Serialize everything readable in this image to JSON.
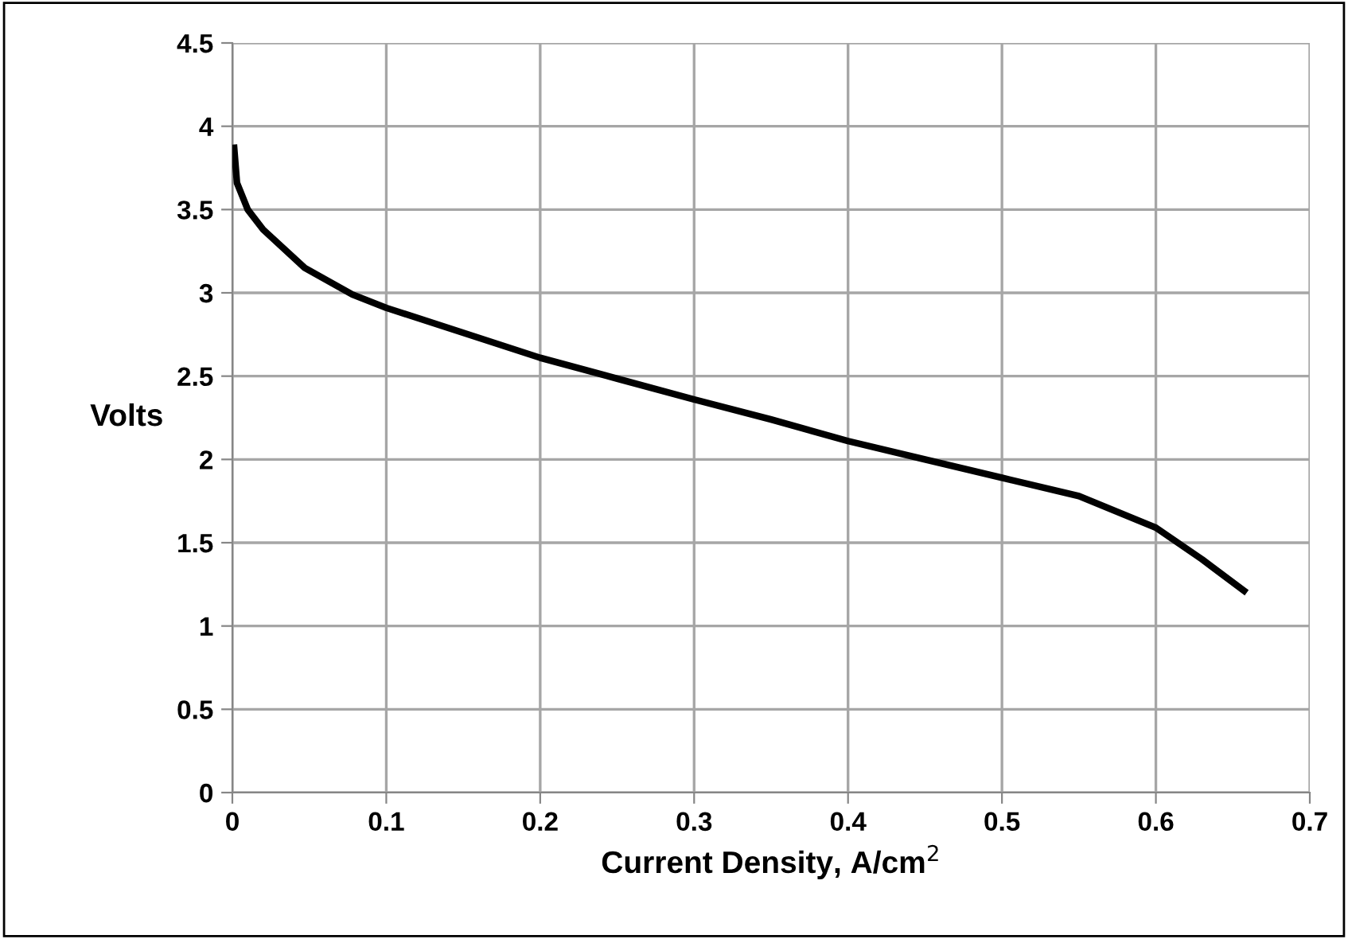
{
  "chart_data": {
    "type": "line",
    "xlabel": "Current Density, A/cm$^{2}$",
    "ylabel": "Volts",
    "series": [
      {
        "color": "#000000",
        "x": [
          0.001,
          0.003,
          0.01,
          0.02,
          0.047,
          0.078,
          0.1,
          0.2,
          0.252,
          0.3,
          0.35,
          0.4,
          0.45,
          0.5,
          0.55,
          0.6,
          0.63,
          0.659
        ],
        "values": [
          3.89,
          3.66,
          3.5,
          3.38,
          3.15,
          2.99,
          2.91,
          2.61,
          2.48,
          2.36,
          2.24,
          2.11,
          2.0,
          1.89,
          1.78,
          1.59,
          1.4,
          1.2
        ]
      }
    ],
    "xlim": [
      0,
      0.7
    ],
    "xticks": [
      0,
      0.1,
      0.2,
      0.3,
      0.4,
      0.5,
      0.6,
      0.7
    ],
    "ylim": [
      0,
      4.5
    ],
    "yticks": [
      0,
      0.5,
      1,
      1.5,
      2,
      2.5,
      3,
      3.5,
      4,
      4.5
    ],
    "grid": true,
    "legend": false,
    "marker": "none",
    "line_style": "solid"
  }
}
